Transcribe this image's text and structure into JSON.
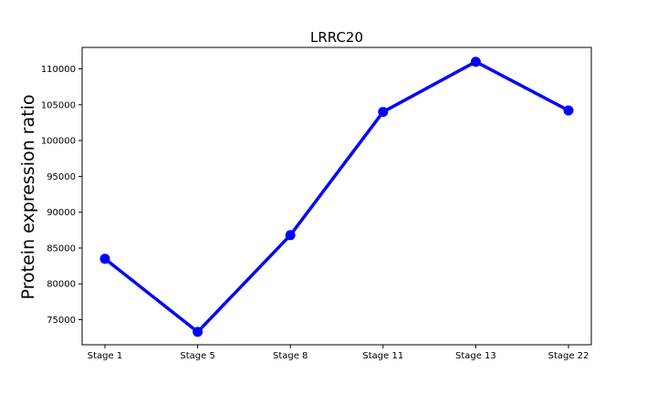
{
  "chart_data": {
    "type": "line",
    "title": "LRRC20",
    "xlabel": "",
    "ylabel": "Protein expression ratio",
    "categories": [
      "Stage 1",
      "Stage 5",
      "Stage 8",
      "Stage 11",
      "Stage 13",
      "Stage 22"
    ],
    "series": [
      {
        "values": [
          83500,
          73300,
          86800,
          104000,
          111000,
          104200
        ],
        "color": "#0000ff"
      }
    ],
    "ylim": [
      71500,
      113000
    ],
    "yticks": [
      75000,
      80000,
      85000,
      90000,
      95000,
      100000,
      105000,
      110000
    ],
    "grid": false,
    "legend": "none"
  }
}
